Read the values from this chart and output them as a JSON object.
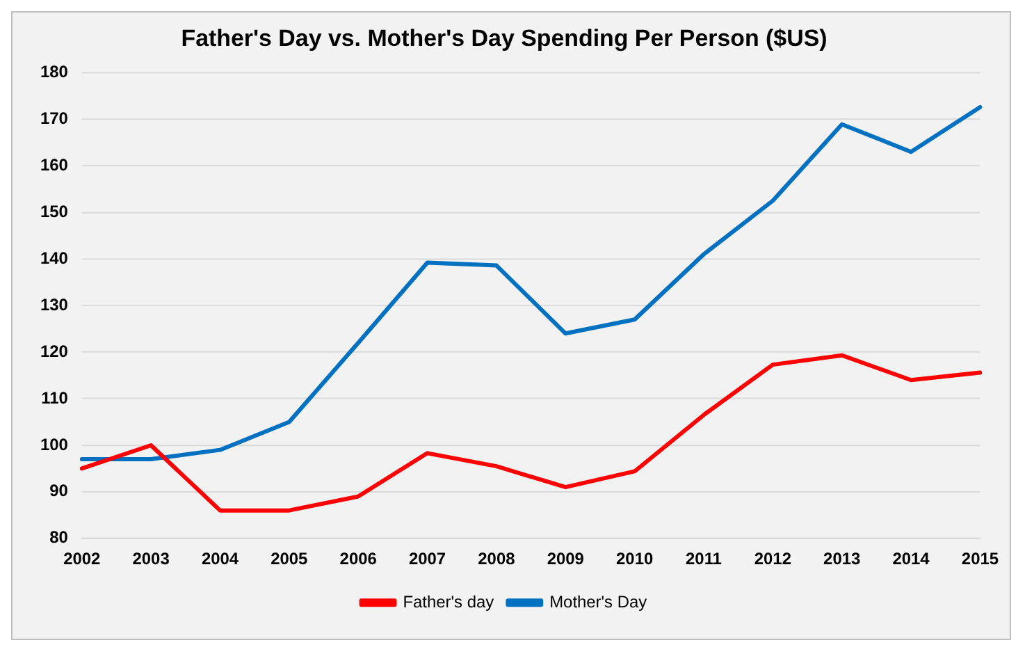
{
  "chart_data": {
    "type": "line",
    "title": "Father's Day vs. Mother's Day Spending Per Person ($US)",
    "categories": [
      "2002",
      "2003",
      "2004",
      "2005",
      "2006",
      "2007",
      "2008",
      "2009",
      "2010",
      "2011",
      "2012",
      "2013",
      "2014",
      "2015"
    ],
    "series": [
      {
        "name": "Father's day",
        "color": "#ff0000",
        "values": [
          95,
          100,
          86,
          86,
          89,
          98.3,
          95.5,
          91,
          94.4,
          106.5,
          117.3,
          119.3,
          114,
          115.6
        ]
      },
      {
        "name": "Mother's Day",
        "color": "#0070c0",
        "values": [
          97,
          97,
          99,
          105,
          122,
          139.2,
          138.6,
          124,
          127,
          141,
          152.5,
          168.9,
          163,
          172.6
        ]
      }
    ],
    "ylim": [
      80,
      180
    ],
    "yticks": [
      80,
      90,
      100,
      110,
      120,
      130,
      140,
      150,
      160,
      170,
      180
    ],
    "grid": "y",
    "legend": "bottom",
    "marker": "none",
    "line_style": "solid"
  }
}
